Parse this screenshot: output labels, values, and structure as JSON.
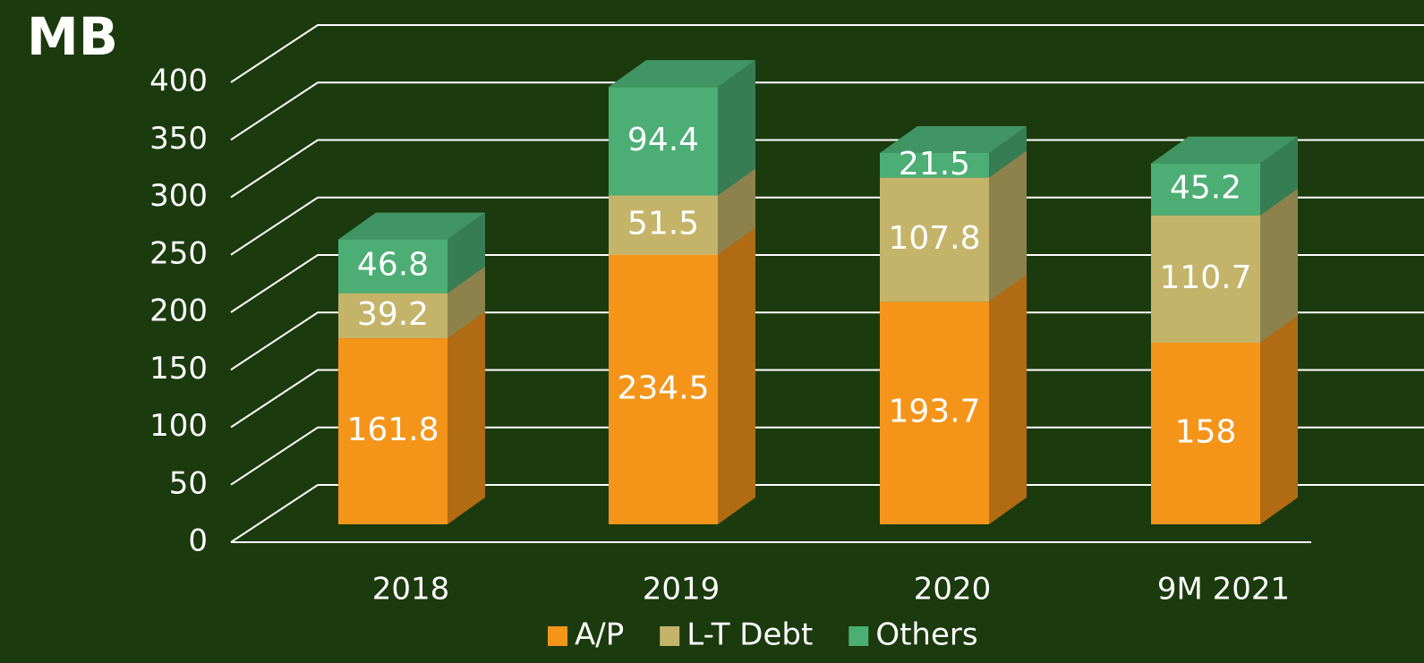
{
  "chart_data": {
    "type": "bar3d_stacked",
    "title": "MB",
    "categories": [
      "2018",
      "2019",
      "2020",
      "9M 2021"
    ],
    "series": [
      {
        "name": "A/P",
        "color": "#f4951a",
        "values": [
          161.8,
          234.5,
          193.7,
          158
        ]
      },
      {
        "name": "L-T Debt",
        "color": "#c4b46a",
        "values": [
          39.2,
          51.5,
          107.8,
          110.7
        ]
      },
      {
        "name": "Others",
        "color": "#4cae74",
        "values": [
          46.8,
          94.4,
          21.5,
          45.2
        ]
      }
    ],
    "ylim": [
      0,
      400
    ],
    "yticks": [
      0,
      50,
      100,
      150,
      200,
      250,
      300,
      350,
      400
    ],
    "grid": true
  }
}
